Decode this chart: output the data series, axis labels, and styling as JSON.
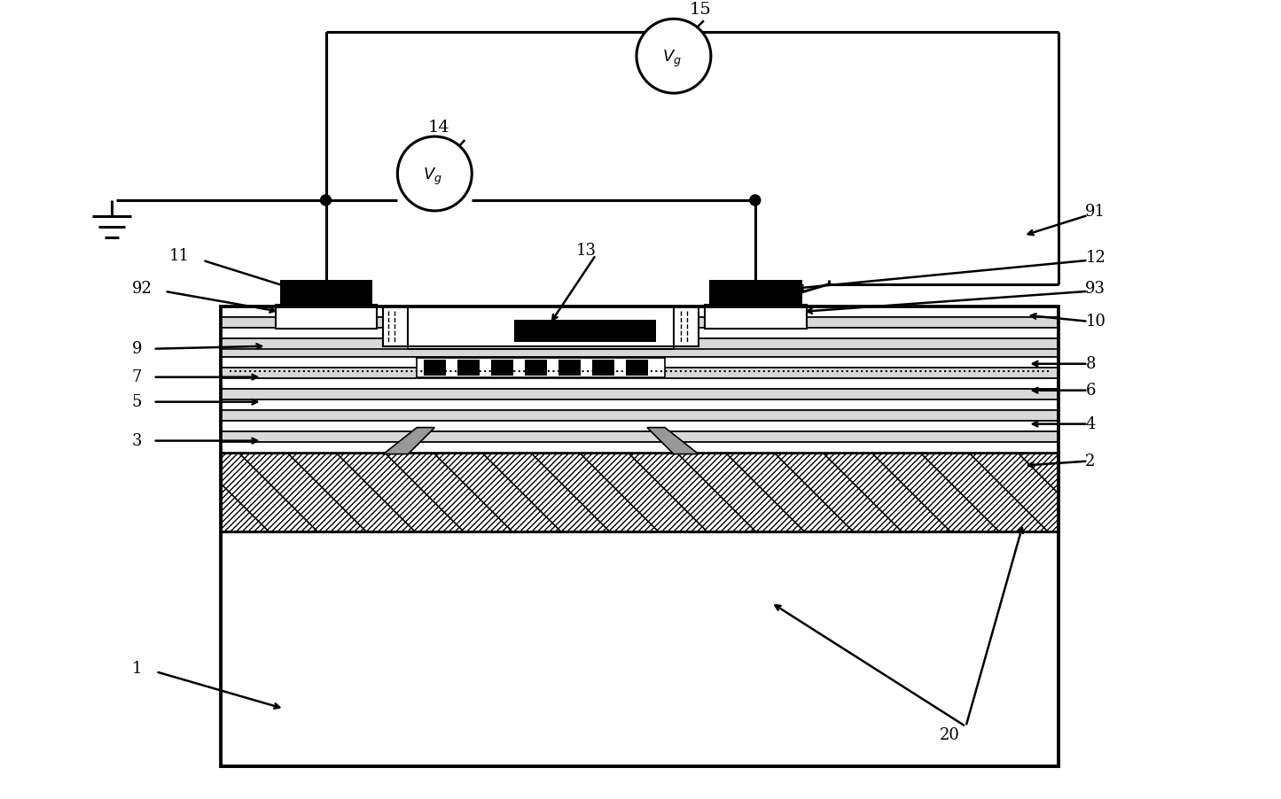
{
  "bg_color": "#ffffff",
  "line_color": "#000000",
  "fig_width": 14.45,
  "fig_height": 9.02
}
